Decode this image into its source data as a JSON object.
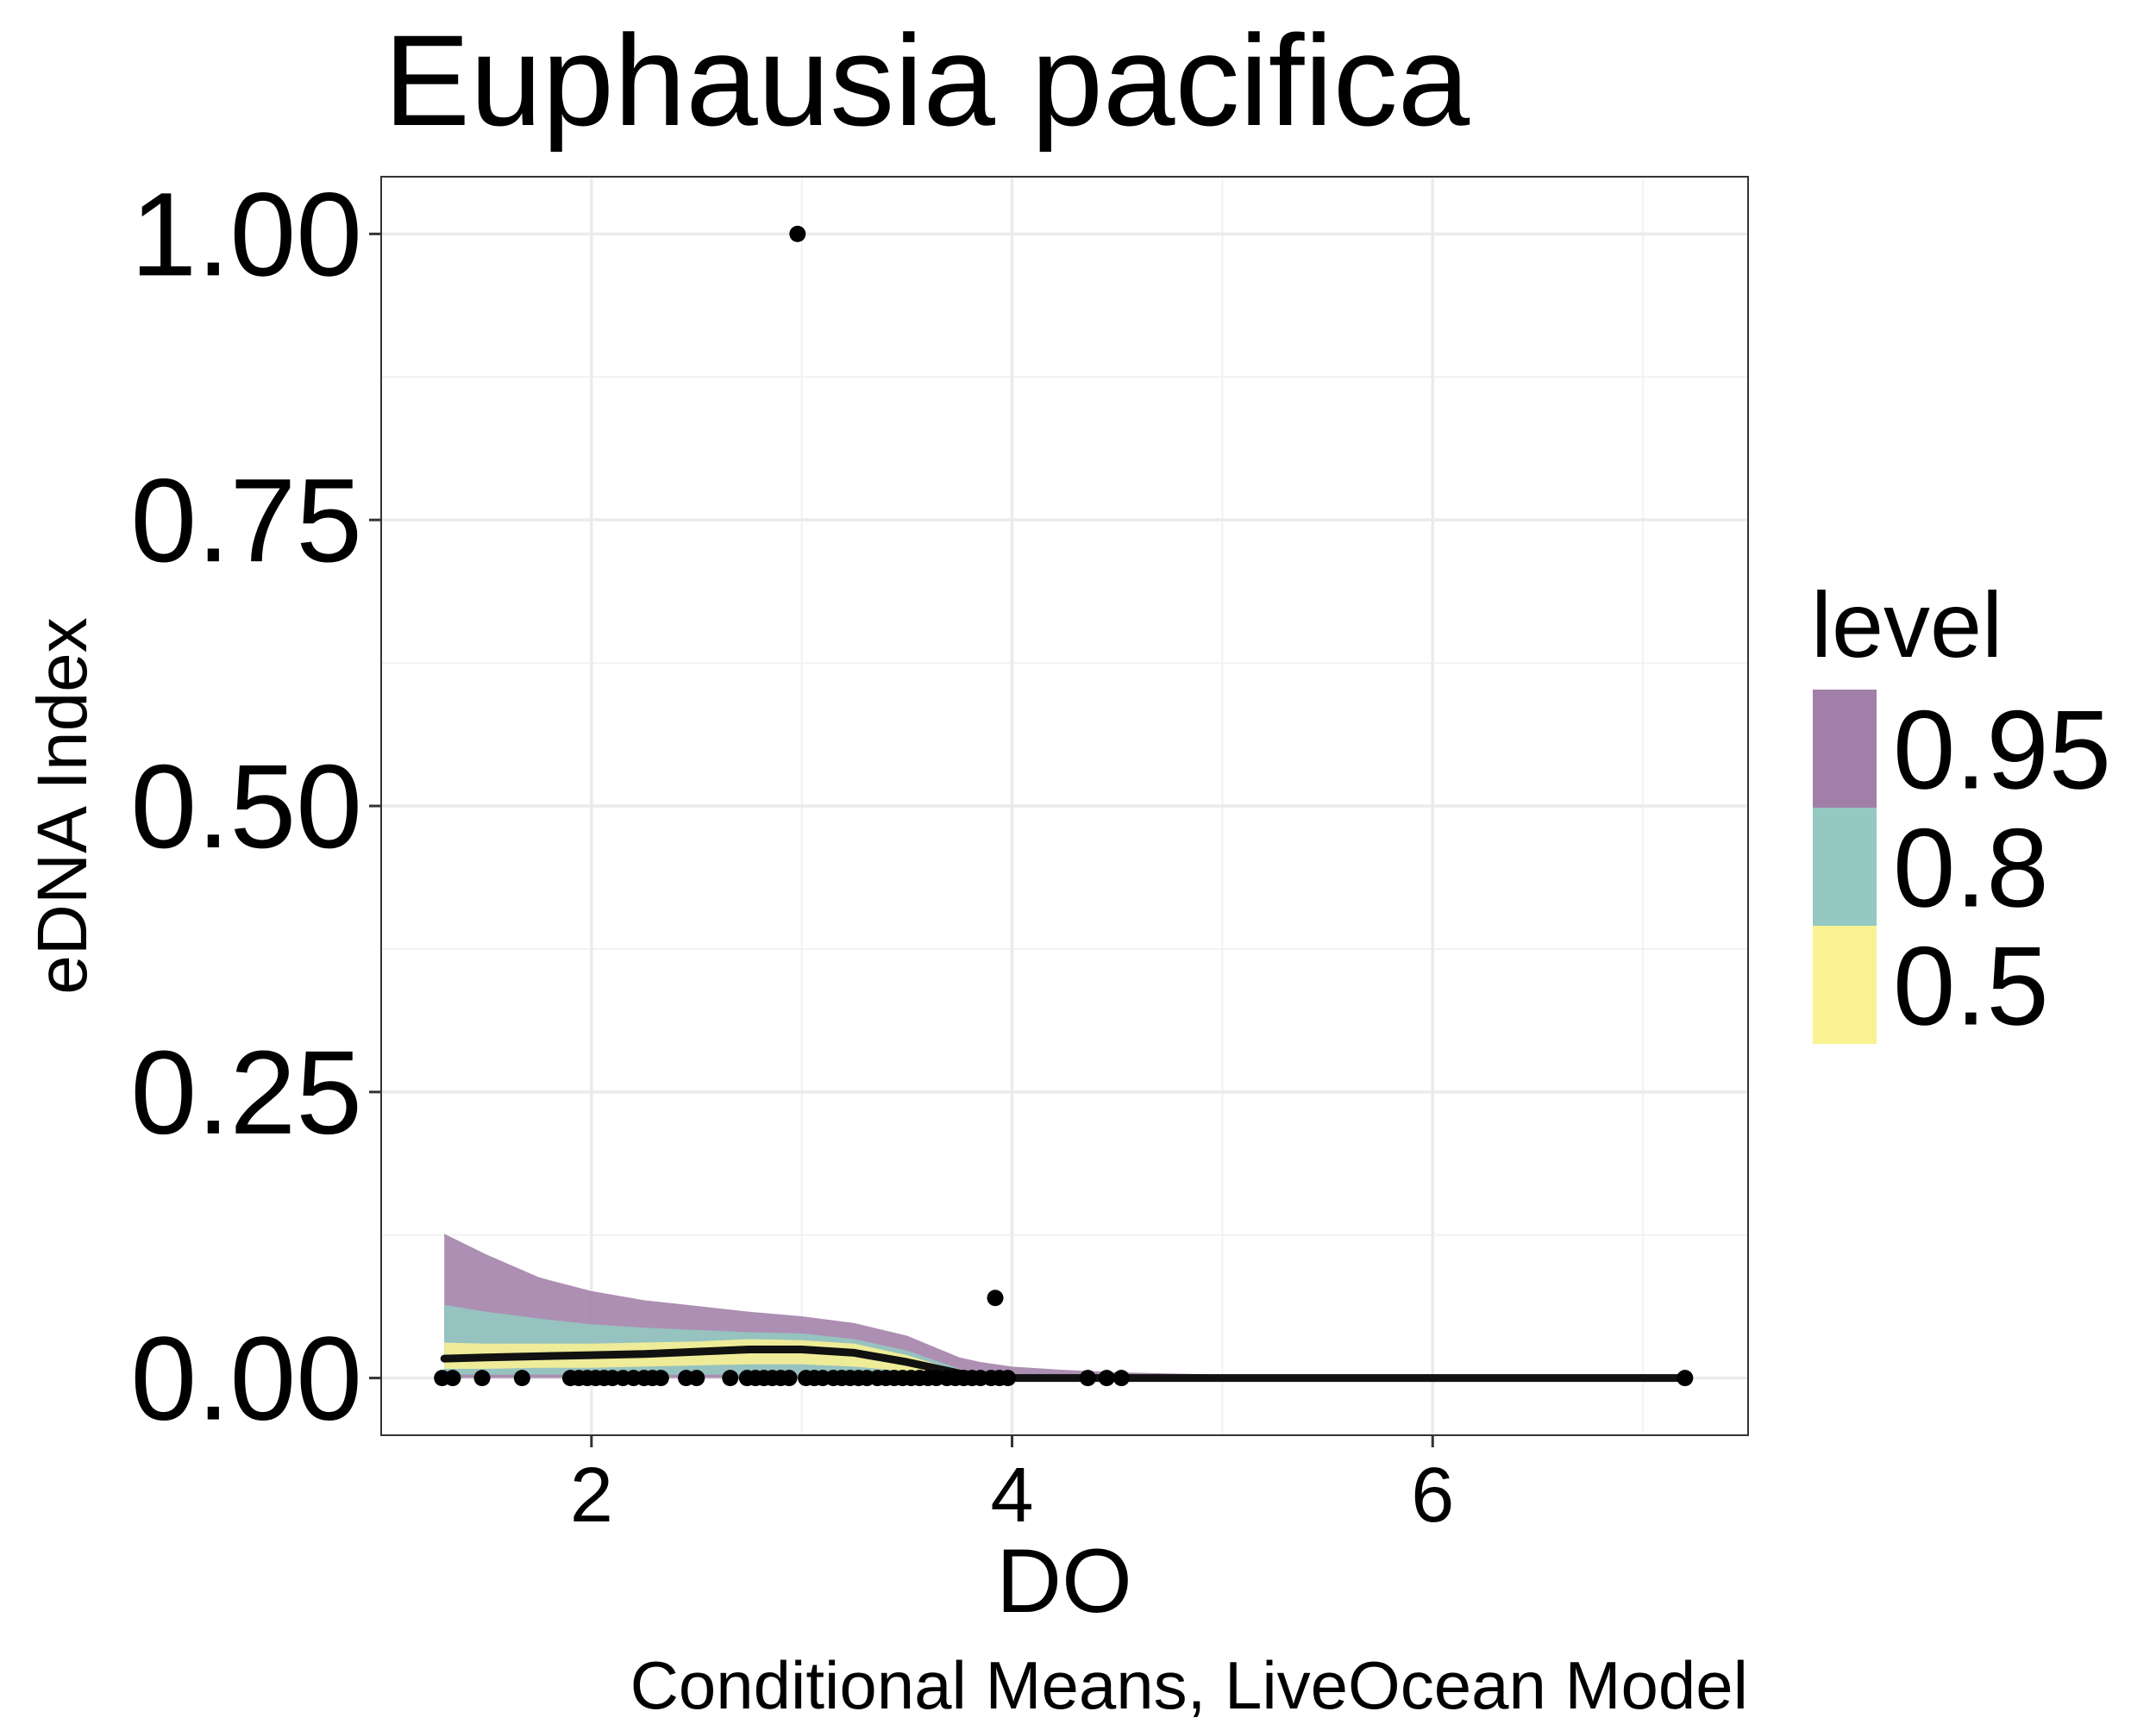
{
  "chart_data": {
    "type": "area",
    "title": "Euphausia pacifica",
    "xlabel": "DO",
    "ylabel": "eDNA Index",
    "caption": "Conditional Means, LiveOcean Model",
    "xlim": [
      1.0,
      7.5
    ],
    "ylim": [
      -0.05,
      1.05
    ],
    "x_ticks": [
      {
        "value": 2,
        "label": "2"
      },
      {
        "value": 4,
        "label": "4"
      },
      {
        "value": 6,
        "label": "6"
      }
    ],
    "y_ticks": [
      {
        "value": 0.0,
        "label": "0.00"
      },
      {
        "value": 0.25,
        "label": "0.25"
      },
      {
        "value": 0.5,
        "label": "0.50"
      },
      {
        "value": 0.75,
        "label": "0.75"
      },
      {
        "value": 1.0,
        "label": "1.00"
      }
    ],
    "x_minor": [
      1,
      3,
      5,
      7
    ],
    "y_minor": [
      0.125,
      0.375,
      0.625,
      0.875
    ],
    "grid": true,
    "legend": {
      "title": "level",
      "position": "right",
      "entries": [
        {
          "label": "0.95",
          "color": "#A27FA8"
        },
        {
          "label": "0.8",
          "color": "#93C9C2"
        },
        {
          "label": "0.5",
          "color": "#FAF192"
        }
      ]
    },
    "x": [
      1.3,
      1.5,
      1.75,
      2.0,
      2.25,
      2.5,
      2.75,
      3.0,
      3.25,
      3.5,
      3.75,
      3.85,
      4.0,
      4.25,
      4.5,
      5.0,
      5.5,
      6.0,
      6.5,
      7.2
    ],
    "mean": [
      0.017,
      0.018,
      0.019,
      0.02,
      0.021,
      0.023,
      0.025,
      0.025,
      0.022,
      0.014,
      0.004,
      0.002,
      0.0,
      0.0,
      0.0,
      0.0,
      0.0,
      0.0,
      0.0,
      0.0
    ],
    "bands": [
      {
        "level": "0.95",
        "color": "#A27FA8",
        "lower": [
          0.0,
          0.0,
          0.0,
          0.0,
          0.0,
          0.0,
          0.0,
          0.0,
          0.0,
          0.0,
          0.0,
          0.0,
          0.0,
          0.0,
          0.0,
          0.0,
          0.0,
          0.0,
          0.0,
          0.0
        ],
        "upper": [
          0.126,
          0.108,
          0.088,
          0.076,
          0.068,
          0.063,
          0.058,
          0.054,
          0.048,
          0.037,
          0.018,
          0.014,
          0.01,
          0.007,
          0.005,
          0.003,
          0.002,
          0.001,
          0.001,
          0.001
        ]
      },
      {
        "level": "0.8",
        "color": "#93C9C2",
        "lower": [
          0.003,
          0.003,
          0.003,
          0.003,
          0.003,
          0.003,
          0.003,
          0.003,
          0.002,
          0.001,
          0.0,
          0.0,
          0.0,
          0.0,
          0.0,
          0.0,
          0.0,
          0.0,
          0.0,
          0.0
        ],
        "upper": [
          0.064,
          0.058,
          0.052,
          0.047,
          0.044,
          0.042,
          0.04,
          0.039,
          0.034,
          0.024,
          0.008,
          0.004,
          0.002,
          0.001,
          0.001,
          0.0,
          0.0,
          0.0,
          0.0,
          0.0
        ]
      },
      {
        "level": "0.5",
        "color": "#FAF192",
        "lower": [
          0.008,
          0.008,
          0.009,
          0.009,
          0.01,
          0.011,
          0.012,
          0.012,
          0.01,
          0.006,
          0.001,
          0.0,
          0.0,
          0.0,
          0.0,
          0.0,
          0.0,
          0.0,
          0.0,
          0.0
        ],
        "upper": [
          0.031,
          0.03,
          0.03,
          0.03,
          0.031,
          0.032,
          0.034,
          0.033,
          0.03,
          0.02,
          0.006,
          0.003,
          0.001,
          0.0,
          0.0,
          0.0,
          0.0,
          0.0,
          0.0,
          0.0
        ]
      }
    ],
    "points": [
      {
        "x": 1.29,
        "y": 0.0
      },
      {
        "x": 1.34,
        "y": 0.0
      },
      {
        "x": 1.48,
        "y": 0.0
      },
      {
        "x": 1.67,
        "y": 0.0
      },
      {
        "x": 1.9,
        "y": 0.0
      },
      {
        "x": 1.94,
        "y": 0.0
      },
      {
        "x": 1.98,
        "y": 0.0
      },
      {
        "x": 2.02,
        "y": 0.0
      },
      {
        "x": 2.06,
        "y": 0.0
      },
      {
        "x": 2.1,
        "y": 0.0
      },
      {
        "x": 2.15,
        "y": 0.0
      },
      {
        "x": 2.2,
        "y": 0.0
      },
      {
        "x": 2.25,
        "y": 0.0
      },
      {
        "x": 2.29,
        "y": 0.0
      },
      {
        "x": 2.33,
        "y": 0.0
      },
      {
        "x": 2.45,
        "y": 0.0
      },
      {
        "x": 2.5,
        "y": 0.0
      },
      {
        "x": 2.66,
        "y": 0.0
      },
      {
        "x": 2.74,
        "y": 0.0
      },
      {
        "x": 2.78,
        "y": 0.0
      },
      {
        "x": 2.82,
        "y": 0.0
      },
      {
        "x": 2.86,
        "y": 0.0
      },
      {
        "x": 2.9,
        "y": 0.0
      },
      {
        "x": 2.94,
        "y": 0.0
      },
      {
        "x": 2.98,
        "y": 1.0
      },
      {
        "x": 3.02,
        "y": 0.0
      },
      {
        "x": 3.06,
        "y": 0.0
      },
      {
        "x": 3.1,
        "y": 0.0
      },
      {
        "x": 3.15,
        "y": 0.0
      },
      {
        "x": 3.19,
        "y": 0.0
      },
      {
        "x": 3.23,
        "y": 0.0
      },
      {
        "x": 3.27,
        "y": 0.0
      },
      {
        "x": 3.31,
        "y": 0.0
      },
      {
        "x": 3.36,
        "y": 0.0
      },
      {
        "x": 3.4,
        "y": 0.0
      },
      {
        "x": 3.44,
        "y": 0.0
      },
      {
        "x": 3.48,
        "y": 0.0
      },
      {
        "x": 3.52,
        "y": 0.0
      },
      {
        "x": 3.56,
        "y": 0.0
      },
      {
        "x": 3.6,
        "y": 0.0
      },
      {
        "x": 3.64,
        "y": 0.0
      },
      {
        "x": 3.69,
        "y": 0.0
      },
      {
        "x": 3.73,
        "y": 0.0
      },
      {
        "x": 3.77,
        "y": 0.0
      },
      {
        "x": 3.81,
        "y": 0.0
      },
      {
        "x": 3.85,
        "y": 0.0
      },
      {
        "x": 3.9,
        "y": 0.0
      },
      {
        "x": 3.92,
        "y": 0.07
      },
      {
        "x": 3.94,
        "y": 0.0
      },
      {
        "x": 3.98,
        "y": 0.0
      },
      {
        "x": 4.36,
        "y": 0.0
      },
      {
        "x": 4.45,
        "y": 0.0
      },
      {
        "x": 4.52,
        "y": 0.0
      },
      {
        "x": 7.2,
        "y": 0.0
      }
    ]
  }
}
